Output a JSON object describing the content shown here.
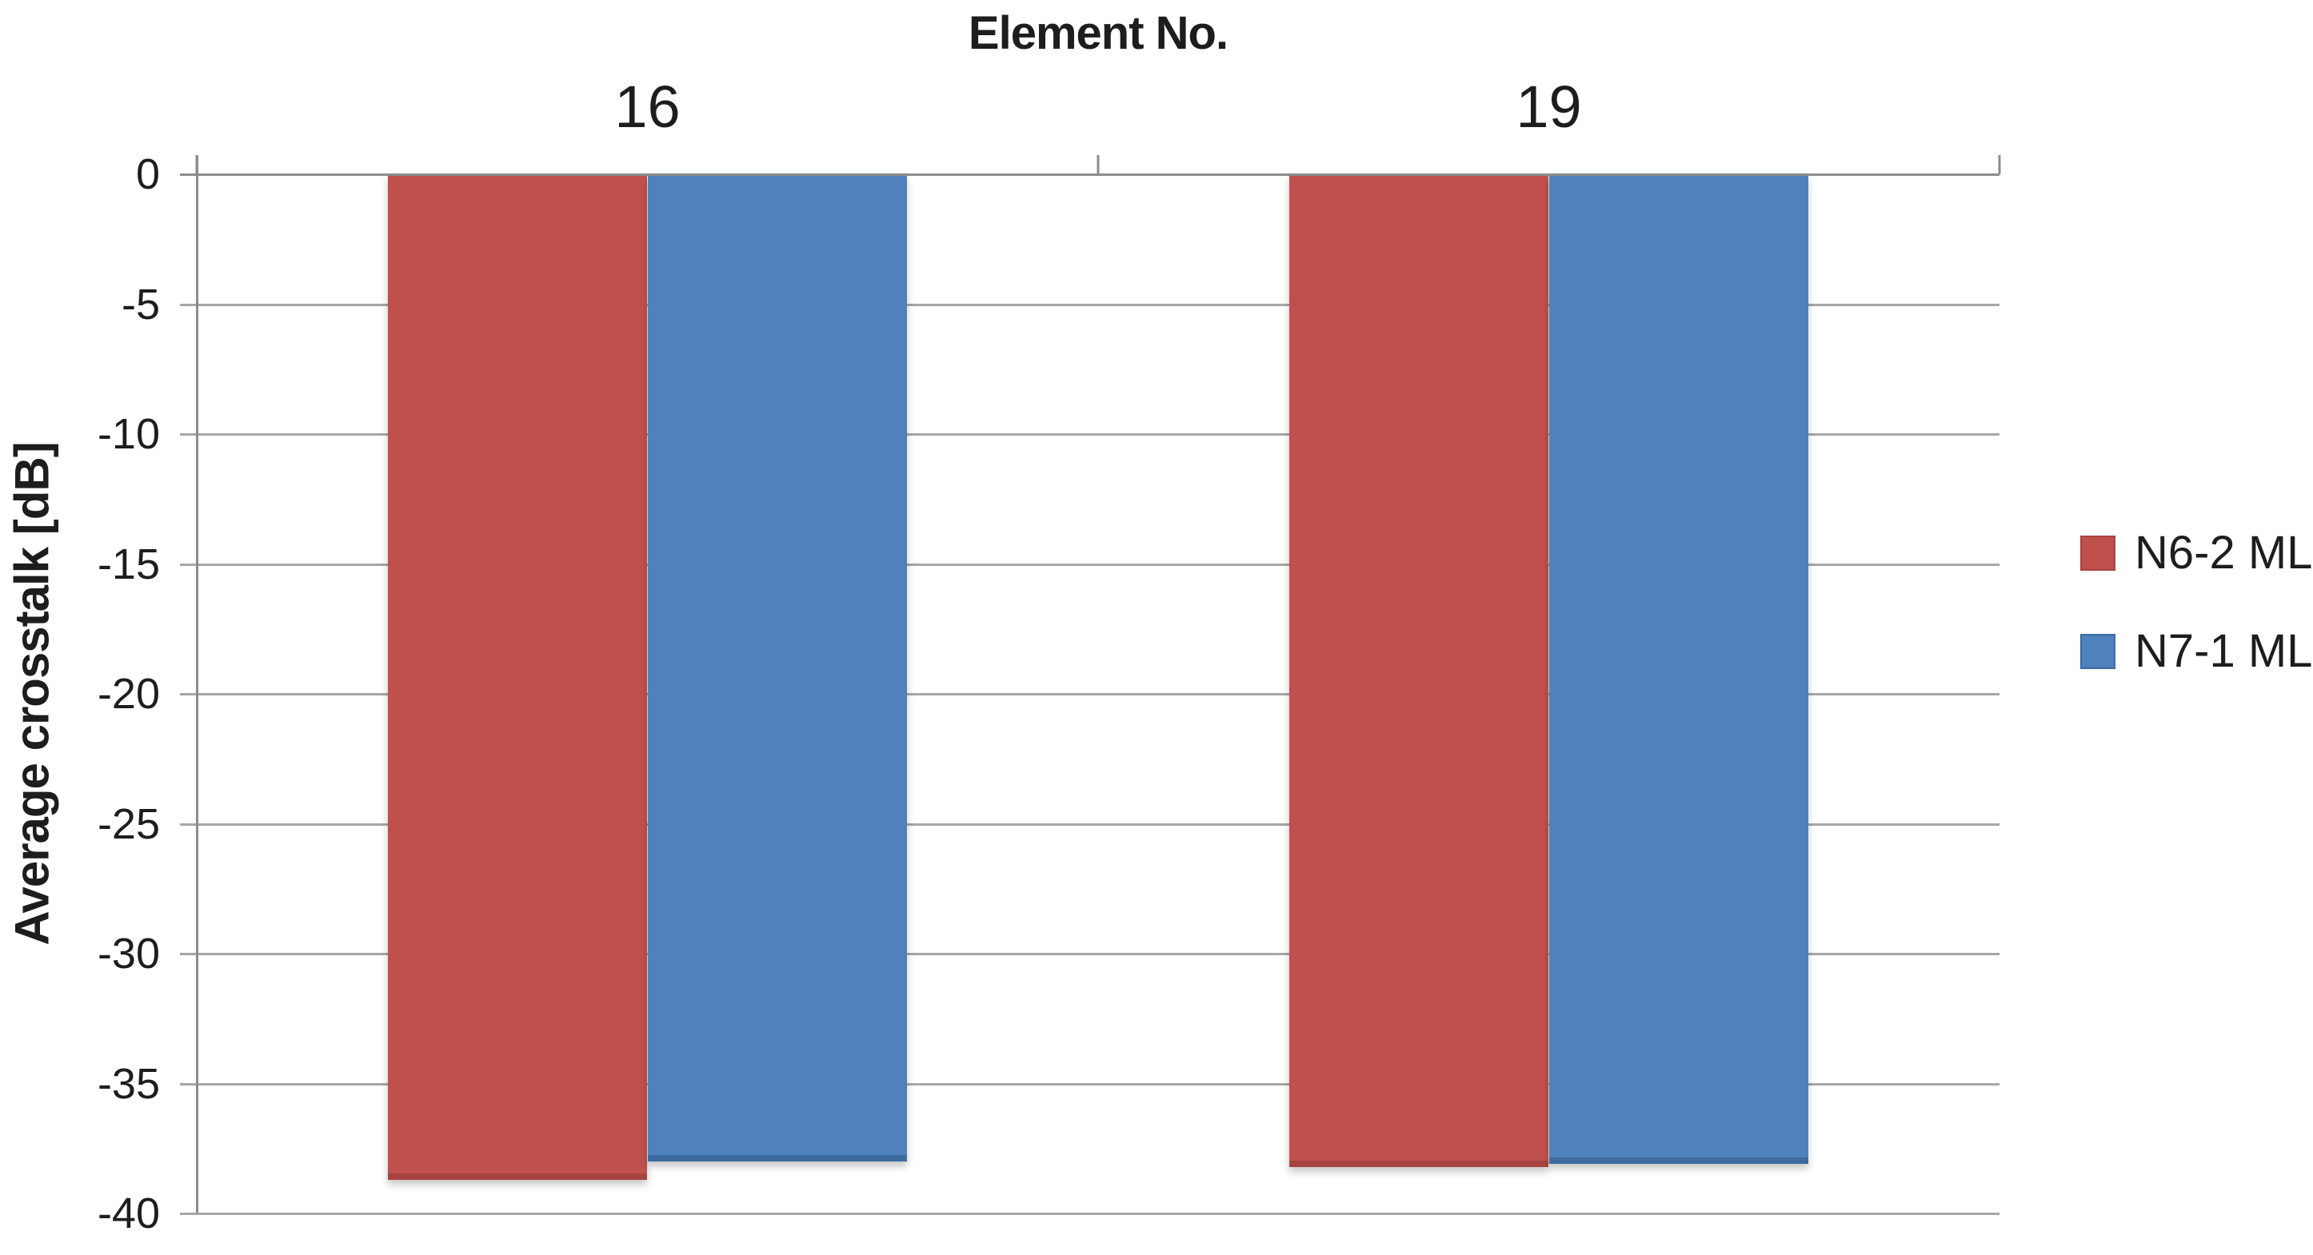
{
  "chart_data": {
    "type": "bar",
    "title": "Element No.",
    "xlabel": "",
    "ylabel": "Average crosstalk [dB]",
    "categories": [
      "16",
      "19"
    ],
    "series": [
      {
        "name": "N6-2 ML",
        "color": "#C0504D",
        "border_color": "#A64441",
        "values": [
          -38.7,
          -38.2
        ]
      },
      {
        "name": "N7-1 ML",
        "color": "#4F81BD",
        "border_color": "#3D6BA0",
        "values": [
          -38.0,
          -38.1
        ]
      }
    ],
    "ylim": [
      0,
      -40
    ],
    "yticks": [
      0,
      -5,
      -10,
      -15,
      -20,
      -25,
      -30,
      -35,
      -40
    ],
    "grid": "horizontal",
    "grid_color": "#A6A6A6",
    "axis_color": "#8C8C8C",
    "legend_position": "right",
    "bars_direction": "down"
  }
}
